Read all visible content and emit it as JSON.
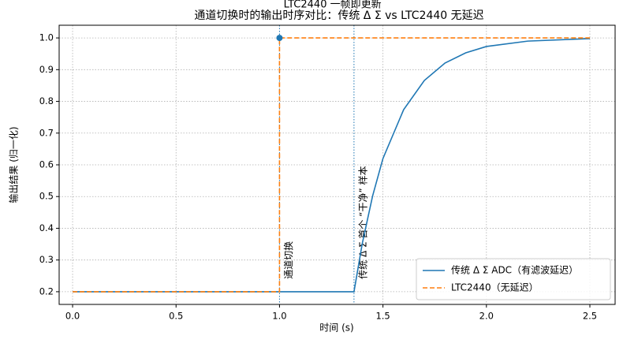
{
  "chart_data": {
    "type": "line",
    "title": "通道切换时的输出时序对比：传统 Δ Σ vs LTC2440 无延迟",
    "x_label": "时间 (s)",
    "y_label": "输出结果 (归一化)",
    "xlim": [
      -0.065,
      2.622
    ],
    "ylim": [
      0.16,
      1.04
    ],
    "xticks": [
      {
        "value": 0,
        "label": "0.0"
      },
      0.5,
      {
        "value": 1,
        "label": "1.0"
      },
      1.5,
      {
        "value": 2,
        "label": "2.0"
      },
      2.5
    ],
    "yticks": [
      0.2,
      0.3,
      0.4,
      0.5,
      0.6,
      0.7,
      0.8,
      0.9,
      {
        "value": 1,
        "label": "1.0"
      }
    ],
    "grid": true,
    "legend": "lower right",
    "series": [
      {
        "name": "传统 Δ Σ ADC（有滤波延迟）",
        "color": "#1f77b4",
        "dash": "solid",
        "x": [
          0,
          1.36,
          1.4,
          1.45,
          1.5,
          1.6,
          1.7,
          1.8,
          1.9,
          2.0,
          2.2,
          2.5
        ],
        "values": [
          0.2,
          0.2,
          0.352,
          0.502,
          0.62,
          0.774,
          0.866,
          0.921,
          0.953,
          0.973,
          0.99,
          0.998
        ]
      },
      {
        "name": "LTC2440（无延迟）",
        "color": "#ff7f0e",
        "dash": "dashed",
        "x": [
          0,
          1,
          1,
          2.5
        ],
        "values": [
          0.2,
          0.2,
          1,
          1
        ]
      }
    ],
    "markers": [
      {
        "x": 1,
        "y": 1,
        "color": "#1f77b4"
      }
    ],
    "vlines": [
      {
        "x": 1,
        "color": "#1f77b4",
        "label": "通道切换",
        "label_y": 0.24
      },
      {
        "x": 1.36,
        "color": "#1f77b4",
        "label": "传统 Δ Σ 首个 “干净” 样本",
        "label_y": 0.24
      }
    ],
    "annotations": [
      {
        "text": "LTC2440 一帧即更新",
        "x": 1.02,
        "y": 1.105
      }
    ]
  }
}
